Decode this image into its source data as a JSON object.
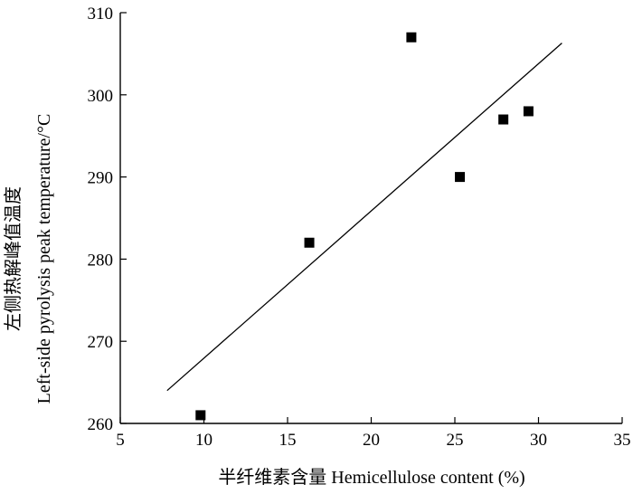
{
  "chart_data": {
    "type": "scatter",
    "xlabel": "半纤维素含量 Hemicellulose content (%)",
    "ylabel_line1": "左侧热解峰值温度",
    "ylabel_line2": "Left-side pyrolysis peak temperature/°C",
    "xlim": [
      5,
      35
    ],
    "ylim": [
      260,
      310
    ],
    "xticks": [
      5,
      10,
      15,
      20,
      25,
      30,
      35
    ],
    "yticks": [
      260,
      270,
      280,
      290,
      300,
      310
    ],
    "grid": false,
    "legend": "none",
    "points": [
      {
        "x": 9.8,
        "y": 261
      },
      {
        "x": 16.3,
        "y": 282
      },
      {
        "x": 22.4,
        "y": 307
      },
      {
        "x": 25.3,
        "y": 290
      },
      {
        "x": 27.9,
        "y": 297
      },
      {
        "x": 29.4,
        "y": 298
      }
    ],
    "trendline": {
      "x": [
        7.8,
        31.4
      ],
      "y": [
        264,
        306.3
      ]
    },
    "marker_color": "#000000",
    "line_color": "#000000"
  }
}
